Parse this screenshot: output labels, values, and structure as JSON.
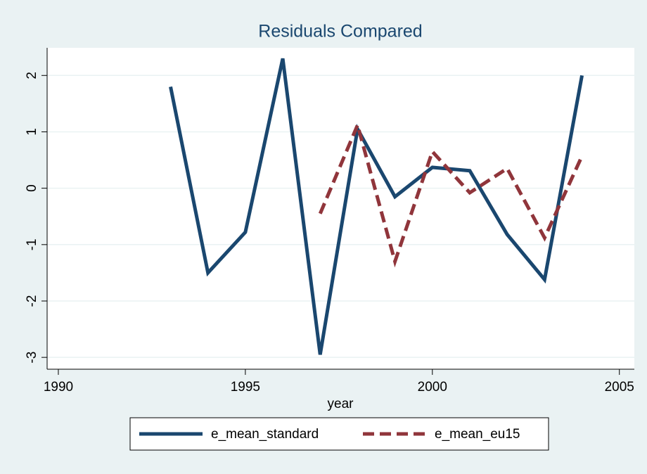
{
  "chart_data": {
    "type": "line",
    "title": "Residuals Compared",
    "x_label": "year",
    "x": [
      1993,
      1994,
      1995,
      1996,
      1997,
      1998,
      1999,
      2000,
      2001,
      2002,
      2003,
      2004
    ],
    "series": [
      {
        "name": "e_mean_standard",
        "color": "#1a476f",
        "dash": false,
        "values": [
          1.8,
          -1.5,
          -0.78,
          2.3,
          -2.95,
          1.05,
          -0.15,
          0.37,
          0.31,
          -0.82,
          -1.62,
          2.0
        ]
      },
      {
        "name": "e_mean_eu15",
        "color": "#90353b",
        "dash": true,
        "values": [
          null,
          null,
          null,
          null,
          -0.45,
          1.12,
          -1.3,
          0.65,
          -0.08,
          0.35,
          -0.88,
          0.57
        ]
      }
    ],
    "xlim": [
      1989.7,
      2005.4
    ],
    "xticks": [
      1990,
      1995,
      2000,
      2005
    ],
    "ylim": [
      -3.21,
      2.49
    ],
    "yticks": [
      -3,
      -2,
      -1,
      0,
      1,
      2
    ],
    "grid": true
  }
}
